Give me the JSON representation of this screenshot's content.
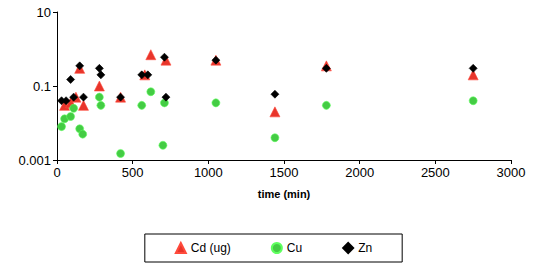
{
  "chart_data": {
    "type": "scatter",
    "x_label": "time (min)",
    "xlim": [
      0,
      3000
    ],
    "xticks": [
      0,
      500,
      1000,
      1500,
      2000,
      2500,
      3000
    ],
    "ylim": [
      0.001,
      10
    ],
    "yticks": [
      0.001,
      0.1,
      10
    ],
    "log": "y",
    "grid": false,
    "legend": "bottom",
    "series": [
      {
        "name": "Cd (ug)",
        "color": "#e8352b",
        "marker": "triangle",
        "x": [
          50,
          90,
          125,
          150,
          175,
          280,
          420,
          580,
          620,
          720,
          1050,
          1440,
          1780,
          2750
        ],
        "values": [
          0.03,
          0.035,
          0.05,
          0.3,
          0.03,
          0.1,
          0.05,
          0.2,
          0.7,
          0.5,
          0.5,
          0.02,
          0.35,
          0.2
        ]
      },
      {
        "name": "Cu",
        "color": "#44cc44",
        "marker": "circle",
        "x": [
          30,
          50,
          90,
          110,
          150,
          170,
          280,
          290,
          420,
          560,
          620,
          700,
          710,
          1050,
          1440,
          1780,
          2750
        ],
        "values": [
          0.008,
          0.013,
          0.015,
          0.025,
          0.007,
          0.005,
          0.05,
          0.03,
          0.0015,
          0.03,
          0.07,
          0.0025,
          0.035,
          0.035,
          0.004,
          0.03,
          0.04
        ]
      },
      {
        "name": "Zn",
        "color": "#000000",
        "marker": "diamond",
        "x": [
          30,
          60,
          90,
          110,
          150,
          175,
          280,
          290,
          420,
          560,
          600,
          710,
          720,
          1050,
          1440,
          1780,
          2750
        ],
        "values": [
          0.04,
          0.04,
          0.15,
          0.05,
          0.35,
          0.05,
          0.3,
          0.2,
          0.05,
          0.2,
          0.2,
          0.6,
          0.05,
          0.5,
          0.06,
          0.3,
          0.3
        ]
      }
    ]
  }
}
